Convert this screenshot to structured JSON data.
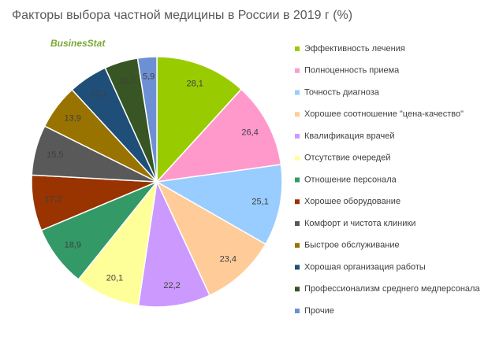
{
  "chart_data": {
    "type": "pie",
    "title": "Факторы выбора частной медицины в России в 2019 г (%)",
    "watermark": "BusinesStat",
    "categories": [
      "Эффективность лечения",
      "Полноценность приема",
      "Точность диагноза",
      "Хорошее соотношение \"цена-качество\"",
      "Квалификация врачей",
      "Отсутствие очередей",
      "Отношение персонала",
      "Хорошее оборудование",
      "Комфорт и чистота клиники",
      "Быстрое обслуживание",
      "Хорошая организация работы",
      "Профессионализм среднего медперсонала",
      "Прочие"
    ],
    "values": [
      28.1,
      26.4,
      25.1,
      23.4,
      22.2,
      20.1,
      18.9,
      17.2,
      15.5,
      13.9,
      12.1,
      10.3,
      5.9
    ],
    "value_labels": [
      "28,1",
      "26,4",
      "25,1",
      "23,4",
      "22,2",
      "20,1",
      "18,9",
      "17,2",
      "15,5",
      "13,9",
      "12,1",
      "10,3",
      "5,9"
    ],
    "colors": [
      "#99cc00",
      "#ff99cc",
      "#99ccff",
      "#ffcc99",
      "#cc99ff",
      "#ffff99",
      "#339966",
      "#993300",
      "#595959",
      "#997300",
      "#1f4e79",
      "#375623",
      "#6d8fd4"
    ],
    "legend": "right"
  }
}
